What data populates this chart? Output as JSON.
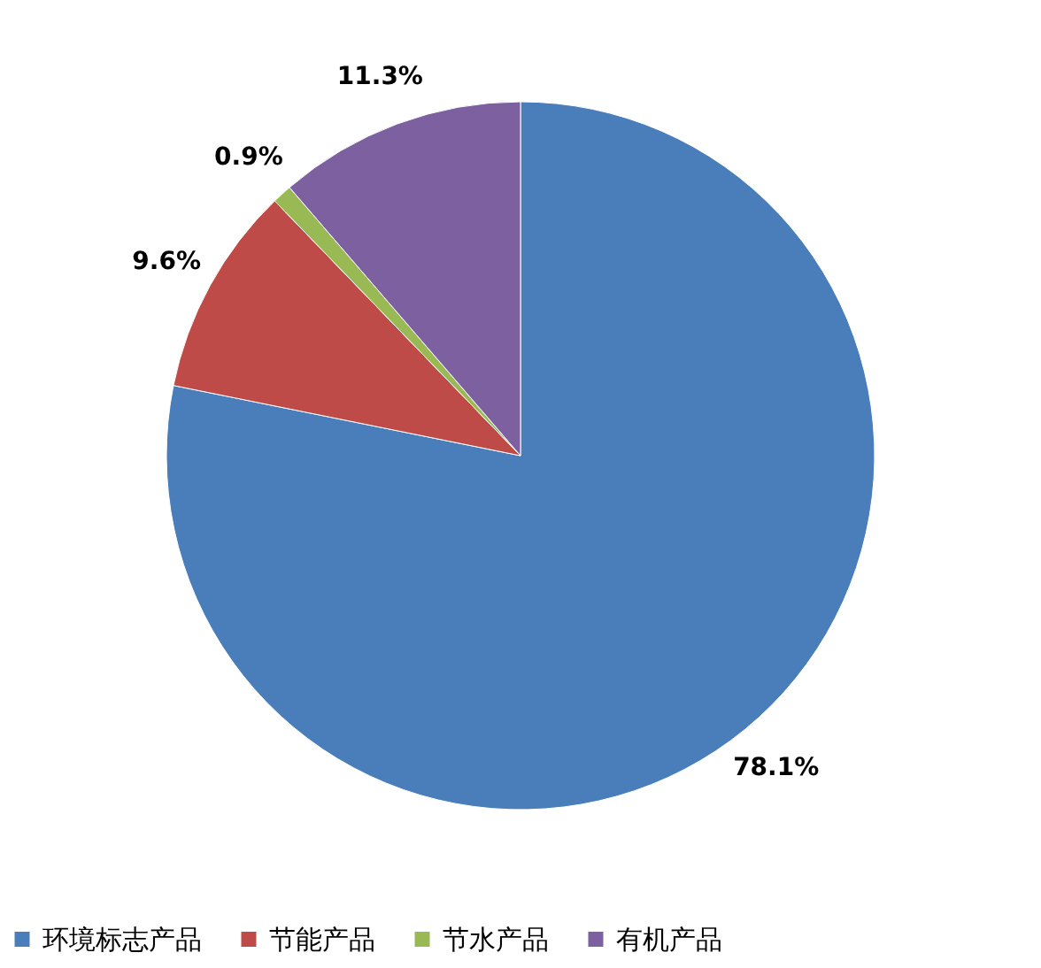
{
  "chart_data": {
    "type": "pie",
    "categories": [
      "环境标志产品",
      "节能产品",
      "节水产品",
      "有机产品"
    ],
    "values": [
      78.1,
      9.6,
      0.9,
      11.3
    ],
    "colors": [
      "#4a7ebb",
      "#be4b48",
      "#98b954",
      "#7d60a0"
    ],
    "value_labels": [
      "78.1%",
      "9.6%",
      "0.9%",
      "11.3%"
    ],
    "legend": "bottom"
  }
}
